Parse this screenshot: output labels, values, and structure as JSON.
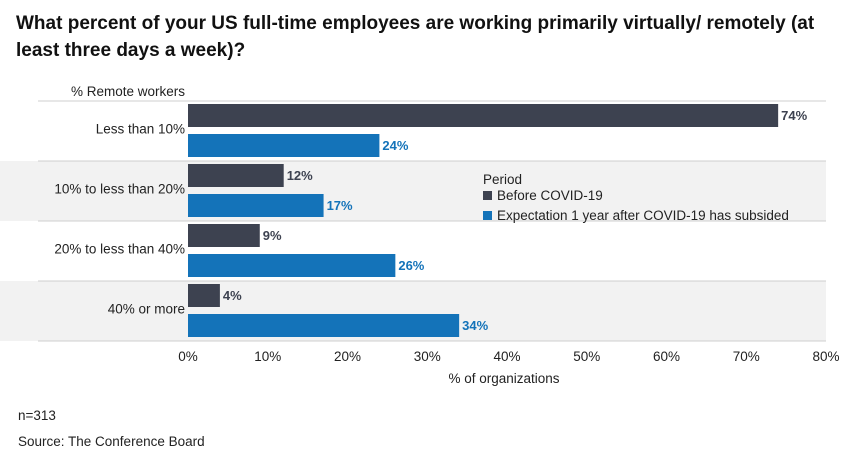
{
  "header": {
    "title": "What percent of your US full-time employees are working primarily virtually/ remotely (at least three days a week)?"
  },
  "chart_data": {
    "type": "bar",
    "orientation": "horizontal",
    "rows_title": "% Remote workers",
    "categories": [
      "Less than 10%",
      "10% to less than 20%",
      "20% to less than 40%",
      "40% or more"
    ],
    "series": [
      {
        "name": "Before COVID-19",
        "values": [
          74,
          12,
          9,
          4
        ],
        "labels": [
          "74%",
          "12%",
          "9%",
          "4%"
        ],
        "color": "#3d4250",
        "label_color": "#3d4250"
      },
      {
        "name": "Expectation 1 year after COVID-19 has subsided",
        "values": [
          24,
          17,
          26,
          34
        ],
        "labels": [
          "24%",
          "17%",
          "26%",
          "34%"
        ],
        "color": "#1473b9",
        "label_color": "#1473b9"
      }
    ],
    "xlim": [
      0,
      80
    ],
    "x_ticks": [
      "0%",
      "10%",
      "20%",
      "30%",
      "40%",
      "50%",
      "60%",
      "70%",
      "80%"
    ],
    "xlabel": "% of organizations",
    "legend": {
      "title": "Period",
      "position": "center-right"
    },
    "band_colors": [
      "#ffffff",
      "#f2f2f2"
    ]
  },
  "footer": {
    "n": "n=313",
    "source": "Source: The Conference Board"
  }
}
